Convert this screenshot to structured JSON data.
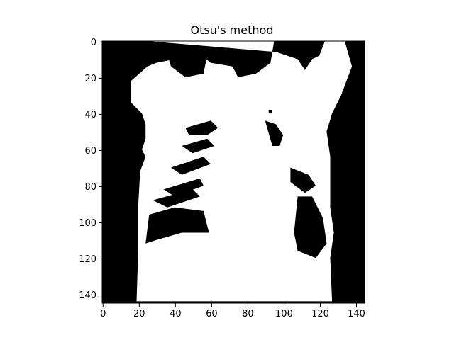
{
  "chart_data": {
    "type": "heatmap",
    "title": "Otsu's method",
    "xlabel": "",
    "ylabel": "",
    "colormap": [
      "#000000",
      "#ffffff"
    ],
    "image_size": [
      145,
      145
    ],
    "xlim": [
      0,
      144
    ],
    "ylim": [
      144,
      0
    ],
    "x_ticks": [
      "0",
      "20",
      "40",
      "60",
      "80",
      "100",
      "120",
      "140"
    ],
    "y_ticks": [
      "0",
      "20",
      "40",
      "60",
      "80",
      "100",
      "120",
      "140"
    ],
    "x_tick_values": [
      0,
      20,
      40,
      60,
      80,
      100,
      120,
      140
    ],
    "y_tick_values": [
      0,
      20,
      40,
      60,
      80,
      100,
      120,
      140
    ],
    "grid": false,
    "description_binary": "binary threshold mask (0 = black, 1 = white)",
    "white_region_outline": [
      [
        25,
        0
      ],
      [
        95,
        0
      ],
      [
        93,
        12
      ],
      [
        85,
        18
      ],
      [
        75,
        20
      ],
      [
        72,
        14
      ],
      [
        60,
        12
      ],
      [
        55,
        8
      ],
      [
        40,
        10
      ],
      [
        30,
        12
      ],
      [
        25,
        14
      ],
      [
        16,
        22
      ],
      [
        16,
        34
      ],
      [
        22,
        40
      ],
      [
        24,
        46
      ],
      [
        24,
        54
      ],
      [
        22,
        60
      ],
      [
        24,
        64
      ],
      [
        21,
        72
      ],
      [
        20,
        90
      ],
      [
        20,
        114
      ],
      [
        19,
        144
      ],
      [
        127,
        144
      ],
      [
        126,
        120
      ],
      [
        128,
        106
      ],
      [
        126,
        92
      ],
      [
        126,
        72
      ],
      [
        126,
        64
      ],
      [
        124,
        50
      ],
      [
        127,
        40
      ],
      [
        132,
        30
      ],
      [
        138,
        14
      ],
      [
        134,
        0
      ],
      [
        123,
        0
      ],
      [
        120,
        8
      ],
      [
        116,
        10
      ],
      [
        112,
        16
      ],
      [
        108,
        10
      ],
      [
        96,
        6
      ]
    ],
    "black_regions": [
      {
        "name": "upper-left-dark-patch",
        "points": [
          [
            35,
            4
          ],
          [
            48,
            4
          ],
          [
            58,
            8
          ],
          [
            56,
            18
          ],
          [
            46,
            20
          ],
          [
            38,
            14
          ]
        ]
      },
      {
        "name": "left-lung-stripe-1",
        "points": [
          [
            46,
            48
          ],
          [
            60,
            44
          ],
          [
            64,
            48
          ],
          [
            58,
            52
          ],
          [
            48,
            52
          ]
        ]
      },
      {
        "name": "left-lung-stripe-2",
        "points": [
          [
            44,
            58
          ],
          [
            58,
            54
          ],
          [
            62,
            58
          ],
          [
            50,
            62
          ]
        ]
      },
      {
        "name": "left-lung-stripe-3",
        "points": [
          [
            38,
            70
          ],
          [
            56,
            64
          ],
          [
            60,
            68
          ],
          [
            44,
            74
          ]
        ]
      },
      {
        "name": "left-lung-stripe-4",
        "points": [
          [
            34,
            82
          ],
          [
            54,
            76
          ],
          [
            56,
            80
          ],
          [
            40,
            86
          ]
        ]
      },
      {
        "name": "left-lung-stripe-5",
        "points": [
          [
            28,
            88
          ],
          [
            50,
            82
          ],
          [
            54,
            86
          ],
          [
            36,
            92
          ]
        ]
      },
      {
        "name": "left-lung-lower-block",
        "points": [
          [
            26,
            96
          ],
          [
            40,
            92
          ],
          [
            56,
            94
          ],
          [
            59,
            106
          ],
          [
            44,
            106
          ],
          [
            30,
            110
          ],
          [
            24,
            112
          ]
        ]
      },
      {
        "name": "right-lung-small-dot",
        "points": [
          [
            92,
            38
          ],
          [
            94,
            38
          ],
          [
            94,
            40
          ],
          [
            92,
            40
          ]
        ]
      },
      {
        "name": "right-lung-upper",
        "points": [
          [
            90,
            44
          ],
          [
            96,
            46
          ],
          [
            100,
            52
          ],
          [
            98,
            58
          ],
          [
            94,
            58
          ]
        ]
      },
      {
        "name": "right-lung-mid",
        "points": [
          [
            104,
            70
          ],
          [
            114,
            74
          ],
          [
            118,
            80
          ],
          [
            112,
            84
          ],
          [
            104,
            78
          ]
        ]
      },
      {
        "name": "right-lung-lower",
        "points": [
          [
            108,
            86
          ],
          [
            116,
            86
          ],
          [
            122,
            98
          ],
          [
            124,
            112
          ],
          [
            118,
            120
          ],
          [
            108,
            116
          ],
          [
            106,
            106
          ]
        ]
      }
    ]
  }
}
